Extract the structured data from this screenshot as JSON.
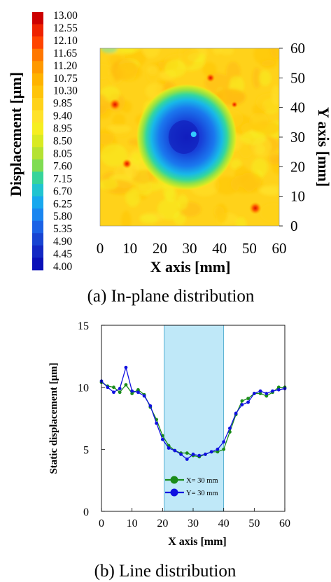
{
  "figure_a": {
    "caption": "(a) In-plane distribution",
    "colorbar_label": "Displacement [μm]",
    "colorbar_ticks": [
      "13.00",
      "12.55",
      "12.10",
      "11.65",
      "11.20",
      "10.75",
      "10.30",
      "9.85",
      "9.40",
      "8.95",
      "8.50",
      "8.05",
      "7.60",
      "7.15",
      "6.70",
      "6.25",
      "5.80",
      "5.35",
      "4.90",
      "4.45",
      "4.00"
    ],
    "colorbar_colors": [
      "#cc0000",
      "#ee2200",
      "#ff4400",
      "#ff7700",
      "#ff9900",
      "#ffb300",
      "#ffc40a",
      "#ffd21a",
      "#ffe22a",
      "#f6ee20",
      "#d9ea22",
      "#b5e232",
      "#7fdc52",
      "#36d49a",
      "#21c4d0",
      "#18a8ee",
      "#1a86f0",
      "#1b62e6",
      "#1844d2",
      "#1328c4",
      "#0a10b8"
    ],
    "xaxis_label": "X axis [mm]",
    "yaxis_label": "Y axis [mm]",
    "x_ticks": [
      "0",
      "10",
      "20",
      "30",
      "40",
      "50",
      "60"
    ],
    "y_ticks": [
      "60",
      "50",
      "40",
      "30",
      "20",
      "10",
      "0"
    ]
  },
  "chart_data": [
    {
      "type": "heatmap",
      "title": "",
      "xlabel": "X axis [mm]",
      "ylabel": "Y axis [mm]",
      "colorbar_label": "Displacement [μm]",
      "xlim": [
        0,
        60
      ],
      "ylim": [
        0,
        60
      ],
      "colorbar_range": [
        4.0,
        13.0
      ],
      "description_values": {
        "background_level": 10.0,
        "low_region_center": [
          29,
          30
        ],
        "low_region_min": 4.2
      },
      "hot_spots": [
        {
          "x": 5,
          "y": 41,
          "value": 12.6
        },
        {
          "x": 9,
          "y": 21,
          "value": 12.2
        },
        {
          "x": 37,
          "y": 50,
          "value": 12.0
        },
        {
          "x": 45,
          "y": 41,
          "value": 11.5
        },
        {
          "x": 52,
          "y": 6,
          "value": 12.8
        }
      ]
    },
    {
      "type": "line",
      "title": "",
      "xlabel": "X axis [mm]",
      "ylabel": "Static displacement [μm]",
      "xlim": [
        0,
        60
      ],
      "ylim": [
        0,
        15
      ],
      "x_ticks": [
        "0",
        "10",
        "20",
        "30",
        "40",
        "50",
        "60"
      ],
      "y_ticks": [
        "0",
        "5",
        "10",
        "15"
      ],
      "shaded_region": [
        20.5,
        40
      ],
      "legend_position": "bottom-center",
      "series": [
        {
          "name": "X= 30 mm",
          "color": "#1a8c1a",
          "x": [
            0,
            2,
            4,
            6,
            8,
            10,
            12,
            14,
            16,
            18,
            20,
            22,
            24,
            26,
            28,
            30,
            32,
            34,
            36,
            38,
            40,
            42,
            44,
            46,
            48,
            50,
            52,
            54,
            56,
            58,
            60
          ],
          "y": [
            10.4,
            10.1,
            10.0,
            9.6,
            10.2,
            9.5,
            9.8,
            9.4,
            8.4,
            7.4,
            6.1,
            5.3,
            4.9,
            4.7,
            4.7,
            4.5,
            4.4,
            4.6,
            4.8,
            4.8,
            5.0,
            6.4,
            7.8,
            8.9,
            9.1,
            9.5,
            9.5,
            9.3,
            9.6,
            10.0,
            10.0
          ]
        },
        {
          "name": "Y= 30 mm",
          "color": "#1010e0",
          "x": [
            0,
            2,
            4,
            6,
            8,
            10,
            12,
            14,
            16,
            18,
            20,
            22,
            24,
            26,
            28,
            30,
            32,
            34,
            36,
            38,
            40,
            42,
            44,
            46,
            48,
            50,
            52,
            54,
            56,
            58,
            60
          ],
          "y": [
            10.5,
            10.0,
            9.6,
            9.9,
            11.6,
            9.7,
            9.6,
            9.3,
            8.5,
            7.1,
            5.8,
            5.1,
            4.9,
            4.6,
            4.2,
            4.6,
            4.5,
            4.6,
            4.8,
            5.0,
            5.6,
            6.7,
            7.9,
            8.6,
            8.8,
            9.5,
            9.7,
            9.5,
            9.7,
            9.8,
            9.9
          ]
        }
      ]
    }
  ],
  "figure_b": {
    "caption": "(b) Line distribution"
  }
}
